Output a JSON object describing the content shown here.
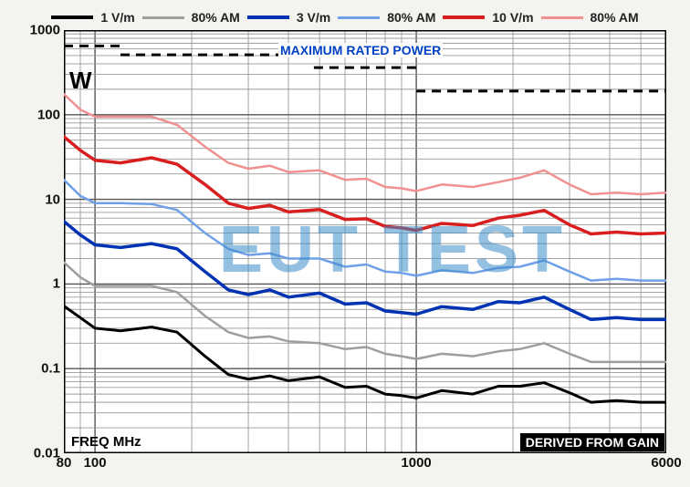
{
  "chart": {
    "type": "line",
    "background_color": "#ffffff",
    "grid_major_color": "#555555",
    "grid_minor_color": "#9a9a9a",
    "plot_border_color": "#000000",
    "xlabel": "FREQ MHz",
    "derived_label": "DERIVED FROM GAIN",
    "max_power_label": "MAXIMUM RATED POWER",
    "watermark_text": "EUT TEST",
    "watermark_color": "rgba(60,140,200,0.55)",
    "y_unit": "W",
    "xscale": "log",
    "yscale": "log",
    "xlim": [
      80,
      6000
    ],
    "ylim": [
      0.01,
      1000
    ],
    "x_ticks": [
      80,
      100,
      1000,
      6000
    ],
    "y_ticks": [
      0.01,
      0.1,
      1,
      10,
      100,
      1000
    ],
    "x_tick_labels": [
      "80",
      "100",
      "1000",
      "6000"
    ],
    "y_tick_labels": [
      "0.01",
      "0.1",
      "1",
      "10",
      "100",
      "1000"
    ],
    "legend": [
      {
        "label": "1 V/m",
        "color": "#000000",
        "width": 4
      },
      {
        "label": "80% AM",
        "color": "#9e9e9e",
        "width": 3
      },
      {
        "label": "3 V/m",
        "color": "#0033b3",
        "width": 4
      },
      {
        "label": "80% AM",
        "color": "#6fa0e8",
        "width": 3
      },
      {
        "label": "10 V/m",
        "color": "#d81e1e",
        "width": 4
      },
      {
        "label": "80% AM",
        "color": "#f19090",
        "width": 3
      }
    ],
    "max_power_segments": [
      {
        "f1": 80,
        "f2": 120,
        "p": 650
      },
      {
        "f1": 120,
        "f2": 480,
        "p": 510
      },
      {
        "f1": 480,
        "f2": 1000,
        "p": 360
      },
      {
        "f1": 1000,
        "f2": 6000,
        "p": 190
      }
    ],
    "series": [
      {
        "name": "1 V/m",
        "color": "#000000",
        "width": 3,
        "points": [
          [
            80,
            0.55
          ],
          [
            90,
            0.4
          ],
          [
            100,
            0.3
          ],
          [
            120,
            0.28
          ],
          [
            150,
            0.31
          ],
          [
            180,
            0.27
          ],
          [
            220,
            0.14
          ],
          [
            260,
            0.085
          ],
          [
            300,
            0.075
          ],
          [
            350,
            0.082
          ],
          [
            400,
            0.072
          ],
          [
            500,
            0.08
          ],
          [
            600,
            0.06
          ],
          [
            700,
            0.062
          ],
          [
            800,
            0.05
          ],
          [
            900,
            0.048
          ],
          [
            1000,
            0.045
          ],
          [
            1200,
            0.055
          ],
          [
            1500,
            0.05
          ],
          [
            1800,
            0.062
          ],
          [
            2100,
            0.062
          ],
          [
            2500,
            0.068
          ],
          [
            3000,
            0.052
          ],
          [
            3500,
            0.04
          ],
          [
            4200,
            0.042
          ],
          [
            5000,
            0.04
          ],
          [
            6000,
            0.04
          ]
        ]
      },
      {
        "name": "80% AM (1)",
        "color": "#9e9e9e",
        "width": 2.5,
        "points": [
          [
            80,
            1.8
          ],
          [
            90,
            1.2
          ],
          [
            100,
            0.95
          ],
          [
            120,
            0.95
          ],
          [
            150,
            0.95
          ],
          [
            180,
            0.8
          ],
          [
            220,
            0.42
          ],
          [
            260,
            0.27
          ],
          [
            300,
            0.23
          ],
          [
            350,
            0.24
          ],
          [
            400,
            0.21
          ],
          [
            500,
            0.2
          ],
          [
            600,
            0.17
          ],
          [
            700,
            0.18
          ],
          [
            800,
            0.15
          ],
          [
            900,
            0.14
          ],
          [
            1000,
            0.13
          ],
          [
            1200,
            0.15
          ],
          [
            1500,
            0.14
          ],
          [
            1800,
            0.16
          ],
          [
            2100,
            0.17
          ],
          [
            2500,
            0.2
          ],
          [
            3000,
            0.15
          ],
          [
            3500,
            0.12
          ],
          [
            4200,
            0.12
          ],
          [
            5000,
            0.12
          ],
          [
            6000,
            0.12
          ]
        ]
      },
      {
        "name": "3 V/m",
        "color": "#0033b3",
        "width": 3.5,
        "points": [
          [
            80,
            5.5
          ],
          [
            90,
            3.8
          ],
          [
            100,
            2.9
          ],
          [
            120,
            2.7
          ],
          [
            150,
            3.0
          ],
          [
            180,
            2.6
          ],
          [
            220,
            1.4
          ],
          [
            260,
            0.85
          ],
          [
            300,
            0.75
          ],
          [
            350,
            0.85
          ],
          [
            400,
            0.7
          ],
          [
            500,
            0.78
          ],
          [
            600,
            0.58
          ],
          [
            700,
            0.6
          ],
          [
            800,
            0.48
          ],
          [
            900,
            0.46
          ],
          [
            1000,
            0.44
          ],
          [
            1200,
            0.54
          ],
          [
            1500,
            0.5
          ],
          [
            1800,
            0.62
          ],
          [
            2100,
            0.6
          ],
          [
            2500,
            0.7
          ],
          [
            3000,
            0.5
          ],
          [
            3500,
            0.38
          ],
          [
            4200,
            0.4
          ],
          [
            5000,
            0.38
          ],
          [
            6000,
            0.38
          ]
        ]
      },
      {
        "name": "80% AM (3)",
        "color": "#6fa0e8",
        "width": 2.5,
        "points": [
          [
            80,
            17
          ],
          [
            90,
            11
          ],
          [
            100,
            9.0
          ],
          [
            120,
            9.0
          ],
          [
            150,
            8.8
          ],
          [
            180,
            7.5
          ],
          [
            220,
            4.0
          ],
          [
            260,
            2.6
          ],
          [
            300,
            2.2
          ],
          [
            350,
            2.3
          ],
          [
            400,
            2.0
          ],
          [
            500,
            2.0
          ],
          [
            600,
            1.6
          ],
          [
            700,
            1.7
          ],
          [
            800,
            1.4
          ],
          [
            900,
            1.35
          ],
          [
            1000,
            1.25
          ],
          [
            1200,
            1.45
          ],
          [
            1500,
            1.35
          ],
          [
            1800,
            1.55
          ],
          [
            2100,
            1.6
          ],
          [
            2500,
            1.9
          ],
          [
            3000,
            1.4
          ],
          [
            3500,
            1.1
          ],
          [
            4200,
            1.15
          ],
          [
            5000,
            1.1
          ],
          [
            6000,
            1.1
          ]
        ]
      },
      {
        "name": "10 V/m",
        "color": "#d81e1e",
        "width": 3.5,
        "points": [
          [
            80,
            55
          ],
          [
            90,
            38
          ],
          [
            100,
            29
          ],
          [
            120,
            27
          ],
          [
            150,
            31
          ],
          [
            180,
            26
          ],
          [
            220,
            15
          ],
          [
            260,
            9.0
          ],
          [
            300,
            7.8
          ],
          [
            350,
            8.5
          ],
          [
            400,
            7.1
          ],
          [
            500,
            7.6
          ],
          [
            600,
            5.8
          ],
          [
            700,
            5.9
          ],
          [
            800,
            4.8
          ],
          [
            900,
            4.6
          ],
          [
            1000,
            4.3
          ],
          [
            1200,
            5.2
          ],
          [
            1500,
            4.9
          ],
          [
            1800,
            6.0
          ],
          [
            2100,
            6.5
          ],
          [
            2500,
            7.4
          ],
          [
            3000,
            5.0
          ],
          [
            3500,
            3.9
          ],
          [
            4200,
            4.1
          ],
          [
            5000,
            3.9
          ],
          [
            6000,
            4.0
          ]
        ]
      },
      {
        "name": "80% AM (10)",
        "color": "#f19090",
        "width": 2.5,
        "points": [
          [
            80,
            175
          ],
          [
            90,
            115
          ],
          [
            100,
            95
          ],
          [
            120,
            95
          ],
          [
            150,
            95
          ],
          [
            180,
            76
          ],
          [
            220,
            42
          ],
          [
            260,
            27
          ],
          [
            300,
            23
          ],
          [
            350,
            25
          ],
          [
            400,
            21
          ],
          [
            500,
            22
          ],
          [
            600,
            17
          ],
          [
            700,
            17.5
          ],
          [
            800,
            14
          ],
          [
            900,
            13.5
          ],
          [
            1000,
            12.5
          ],
          [
            1200,
            15
          ],
          [
            1500,
            14
          ],
          [
            1800,
            16
          ],
          [
            2100,
            18
          ],
          [
            2500,
            22
          ],
          [
            3000,
            15
          ],
          [
            3500,
            11.5
          ],
          [
            4200,
            12
          ],
          [
            5000,
            11.5
          ],
          [
            6000,
            12
          ]
        ]
      }
    ]
  }
}
